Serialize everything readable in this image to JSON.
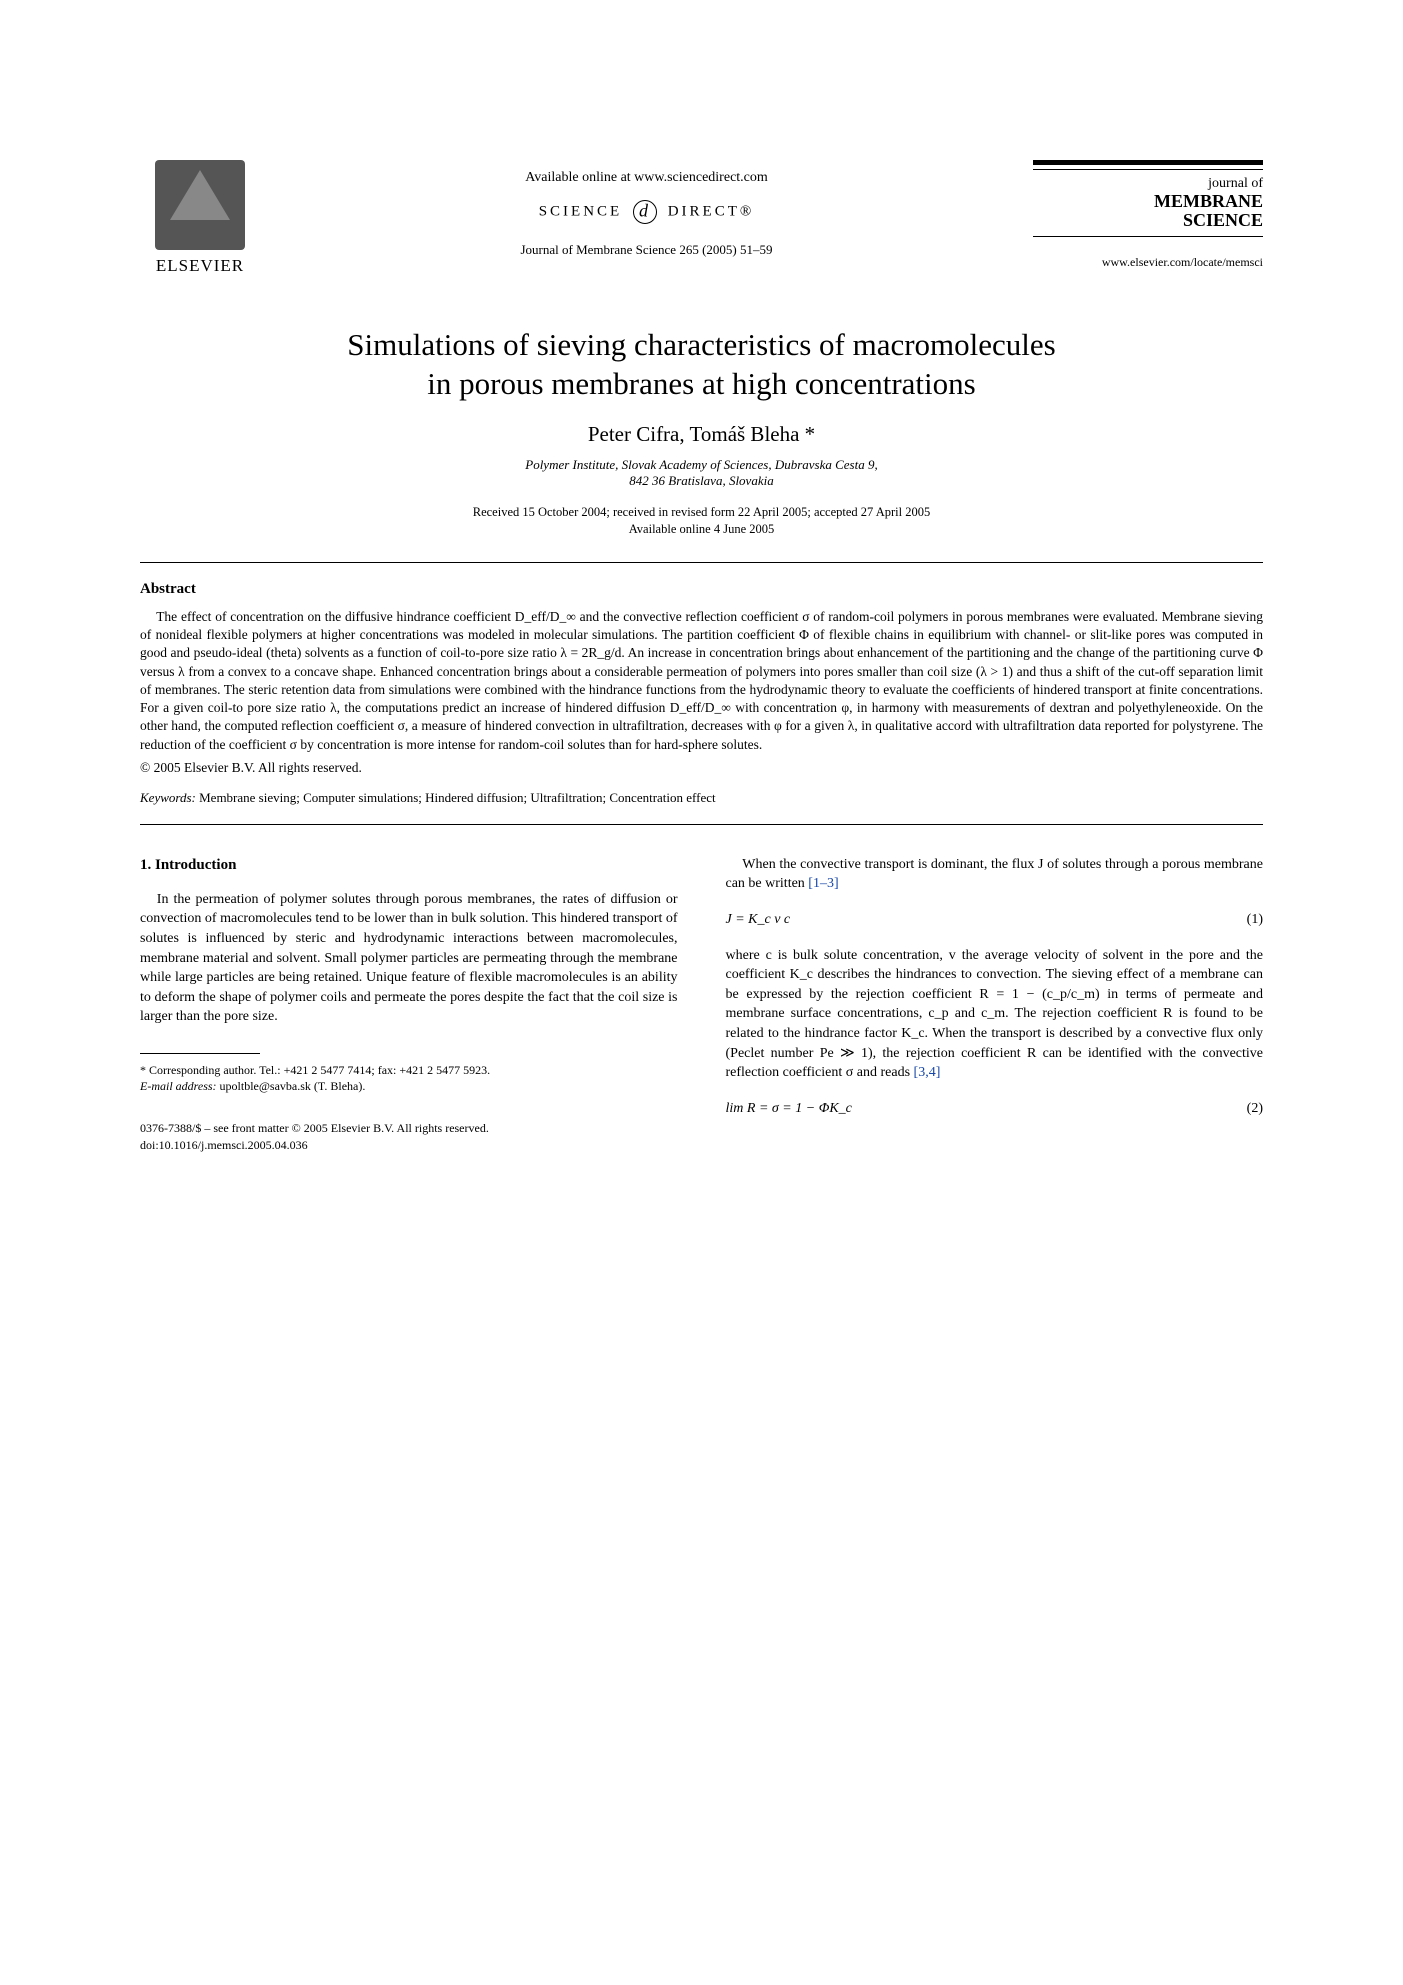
{
  "header": {
    "publisher": "ELSEVIER",
    "available_online": "Available online at www.sciencedirect.com",
    "sciencedirect_left": "SCIENCE",
    "sciencedirect_right": "DIRECT®",
    "journal_ref": "Journal of Membrane Science 265 (2005) 51–59",
    "journal_small": "journal of",
    "journal_big1": "MEMBRANE",
    "journal_big2": "SCIENCE",
    "journal_url": "www.elsevier.com/locate/memsci"
  },
  "title": {
    "line1": "Simulations of sieving characteristics of macromolecules",
    "line2": "in porous membranes at high concentrations"
  },
  "authors": "Peter Cifra, Tomáš Bleha *",
  "affiliation": {
    "line1": "Polymer Institute, Slovak Academy of Sciences, Dubravska Cesta 9,",
    "line2": "842 36 Bratislava, Slovakia"
  },
  "history": {
    "line1": "Received 15 October 2004; received in revised form 22 April 2005; accepted 27 April 2005",
    "line2": "Available online 4 June 2005"
  },
  "abstract": {
    "label": "Abstract",
    "body": "The effect of concentration on the diffusive hindrance coefficient D_eff/D_∞ and the convective reflection coefficient σ of random-coil polymers in porous membranes were evaluated. Membrane sieving of nonideal flexible polymers at higher concentrations was modeled in molecular simulations. The partition coefficient Φ of flexible chains in equilibrium with channel- or slit-like pores was computed in good and pseudo-ideal (theta) solvents as a function of coil-to-pore size ratio λ = 2R_g/d. An increase in concentration brings about enhancement of the partitioning and the change of the partitioning curve Φ versus λ from a convex to a concave shape. Enhanced concentration brings about a considerable permeation of polymers into pores smaller than coil size (λ > 1) and thus a shift of the cut-off separation limit of membranes. The steric retention data from simulations were combined with the hindrance functions from the hydrodynamic theory to evaluate the coefficients of hindered transport at finite concentrations. For a given coil-to pore size ratio λ, the computations predict an increase of hindered diffusion D_eff/D_∞ with concentration φ, in harmony with measurements of dextran and polyethyleneoxide. On the other hand, the computed reflection coefficient σ, a measure of hindered convection in ultrafiltration, decreases with φ for a given λ, in qualitative accord with ultrafiltration data reported for polystyrene. The reduction of the coefficient σ by concentration is more intense for random-coil solutes than for hard-sphere solutes.",
    "copyright": "© 2005 Elsevier B.V. All rights reserved."
  },
  "keywords": {
    "label": "Keywords:",
    "text": "Membrane sieving; Computer simulations; Hindered diffusion; Ultrafiltration; Concentration effect"
  },
  "section1": {
    "heading": "1. Introduction",
    "p1": "In the permeation of polymer solutes through porous membranes, the rates of diffusion or convection of macromolecules tend to be lower than in bulk solution. This hindered transport of solutes is influenced by steric and hydrodynamic interactions between macromolecules, membrane material and solvent. Small polymer particles are permeating through the membrane while large particles are being retained. Unique feature of flexible macromolecules is an ability to deform the shape of polymer coils and permeate the pores despite the fact that the coil size is larger than the pore size."
  },
  "col2": {
    "p1a": "When the convective transport is dominant, the flux J of solutes through a porous membrane can be written ",
    "p1_refs": "[1–3]",
    "eq1": "J = K_c v c",
    "eq1_num": "(1)",
    "p2a": "where c is bulk solute concentration, v the average velocity of solvent in the pore and the coefficient K_c describes the hindrances to convection. The sieving effect of a membrane can be expressed by the rejection coefficient R = 1 − (c_p/c_m) in terms of permeate and membrane surface concentrations, c_p and c_m. The rejection coefficient R is found to be related to the hindrance factor K_c. When the transport is described by a convective flux only (Peclet number Pe ≫ 1), the rejection coefficient R can be identified with the convective reflection coefficient σ and reads ",
    "p2_refs": "[3,4]",
    "eq2": "lim R = σ = 1 − ΦK_c",
    "eq2_num": "(2)"
  },
  "footnote": {
    "corr": "* Corresponding author. Tel.: +421 2 5477 7414; fax: +421 2 5477 5923.",
    "email_label": "E-mail address:",
    "email": "upoltble@savba.sk (T. Bleha)."
  },
  "footer": {
    "line1": "0376-7388/$ – see front matter © 2005 Elsevier B.V. All rights reserved.",
    "line2": "doi:10.1016/j.memsci.2005.04.036"
  }
}
